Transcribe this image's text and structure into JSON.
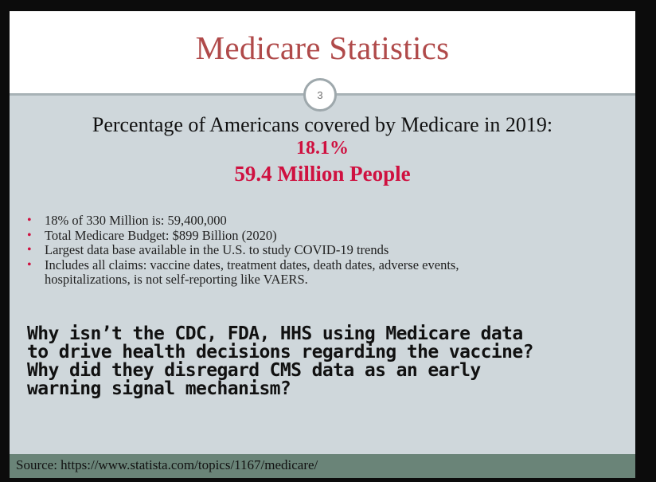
{
  "slide": {
    "title": "Medicare Statistics",
    "number": "3",
    "headline": "Percentage of Americans covered by Medicare in 2019:",
    "stat_percent": "18.1%",
    "stat_people": "59.4 Million People",
    "bullets": [
      {
        "line1": "18% of 330 Million is: 59,400,000",
        "line2": ""
      },
      {
        "line1": "Total Medicare Budget:  $899 Billion (2020)",
        "line2": ""
      },
      {
        "line1": "Largest data base available in the U.S. to study COVID-19 trends",
        "line2": ""
      },
      {
        "line1": "Includes all claims: vaccine dates, treatment dates, death dates, adverse events,",
        "line2": "hospitalizations, is not self-reporting like VAERS."
      }
    ],
    "question_lines": [
      "Why isn’t the CDC, FDA, HHS using Medicare data",
      "to drive health decisions regarding the vaccine?",
      "Why did they disregard CMS data as an early",
      "warning signal mechanism?"
    ],
    "source": "Source: https://www.statista.com/topics/1167/medicare/"
  },
  "colors": {
    "title": "#b04a4a",
    "accent": "#cf1140",
    "body_background": "#cfd7db",
    "source_bar": "#6a8478"
  }
}
